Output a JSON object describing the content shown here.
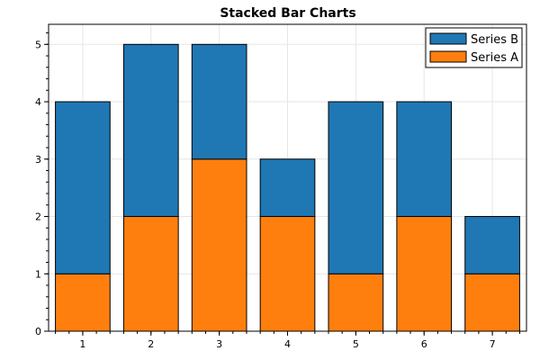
{
  "chart_data": {
    "type": "bar",
    "stacked": true,
    "title": "Stacked Bar Charts",
    "xlabel": "",
    "ylabel": "",
    "categories": [
      "1",
      "2",
      "3",
      "4",
      "5",
      "6",
      "7"
    ],
    "series": [
      {
        "name": "Series A",
        "values": [
          1,
          2,
          3,
          2,
          1,
          2,
          1
        ],
        "color": "#ff7f0e"
      },
      {
        "name": "Series B",
        "values": [
          3,
          3,
          2,
          1,
          3,
          2,
          1
        ],
        "color": "#1f77b4"
      }
    ],
    "ylim": [
      0,
      5.35
    ],
    "yticks": [
      0,
      1,
      2,
      3,
      4,
      5
    ],
    "grid": true,
    "legend_position": "top-right",
    "legend_order": [
      "Series B",
      "Series A"
    ]
  }
}
